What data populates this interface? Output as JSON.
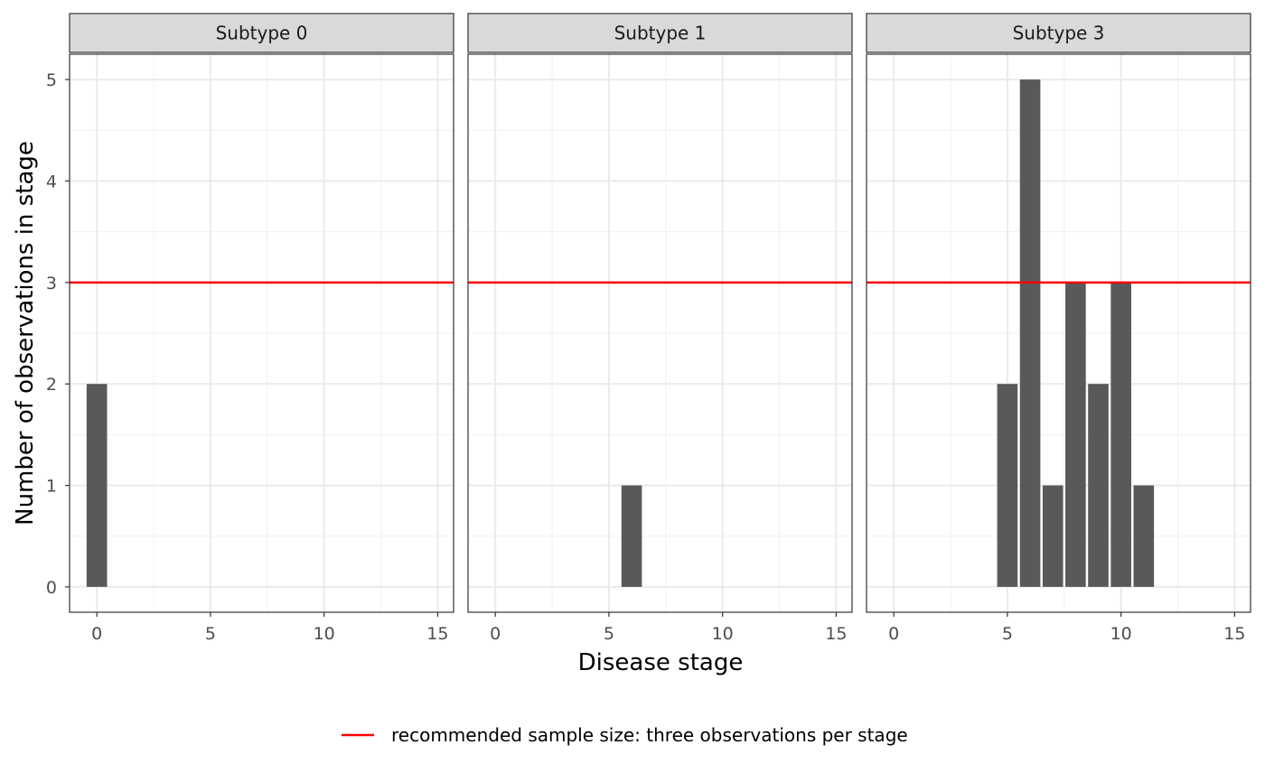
{
  "chart_data": {
    "type": "bar",
    "xlabel": "Disease stage",
    "ylabel": "Number of observations in stage",
    "xlim": [
      -1.2,
      15.7
    ],
    "ylim": [
      -0.25,
      5.25
    ],
    "x_ticks": [
      0,
      5,
      10,
      15
    ],
    "y_ticks": [
      0,
      1,
      2,
      3,
      4,
      5
    ],
    "grid": true,
    "bar_color": "#595959",
    "panels": [
      {
        "title": "Subtype 0",
        "x": [
          0
        ],
        "values": [
          2
        ]
      },
      {
        "title": "Subtype 1",
        "x": [
          6
        ],
        "values": [
          1
        ]
      },
      {
        "title": "Subtype 3",
        "x": [
          5,
          6,
          7,
          8,
          9,
          10,
          11
        ],
        "values": [
          2,
          5,
          1,
          3,
          2,
          3,
          1
        ]
      }
    ],
    "reference_line": {
      "y": 3,
      "color": "#ff0000",
      "label": "recommended sample size: three observations per stage"
    },
    "legend_position": "bottom"
  }
}
